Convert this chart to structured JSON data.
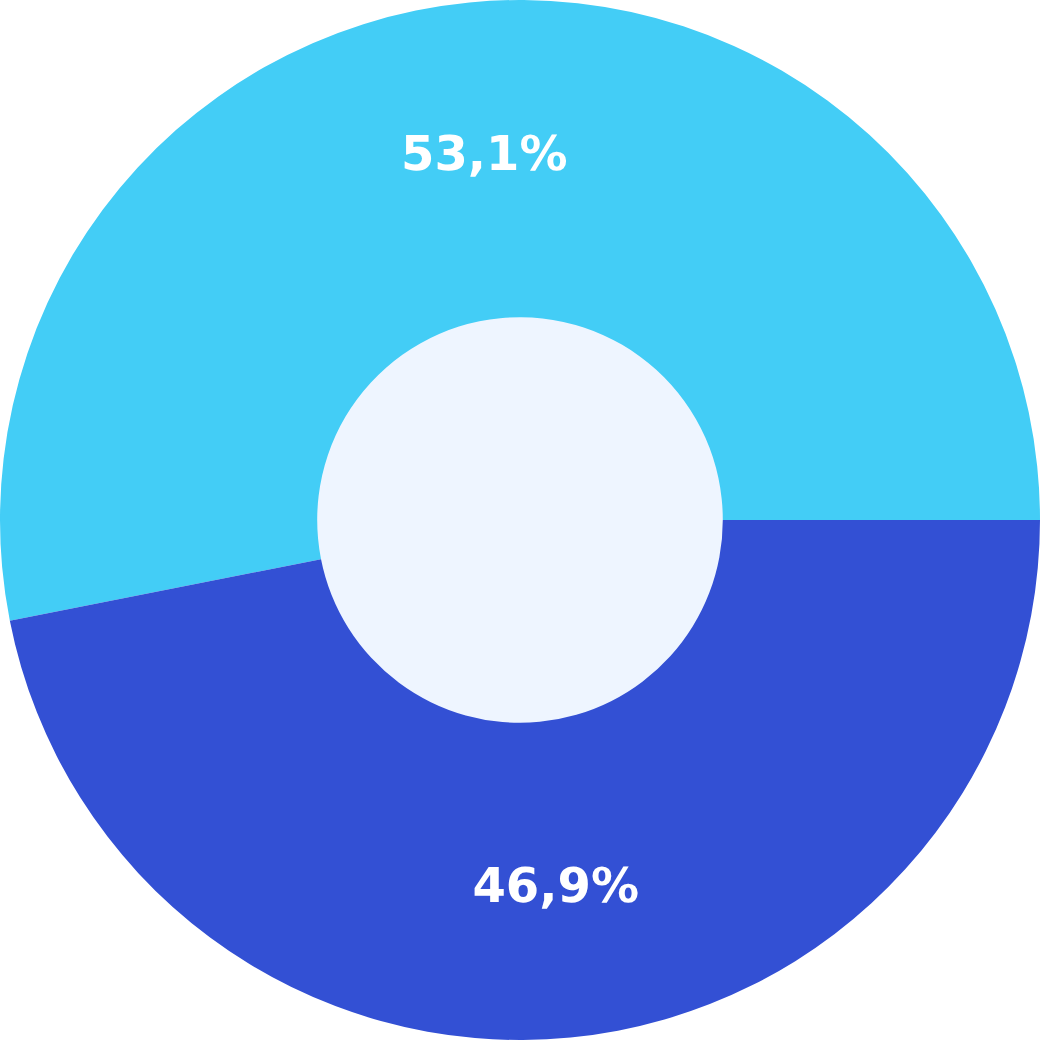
{
  "chart_data": {
    "type": "donut",
    "categories": [
      null,
      null
    ],
    "values": [
      53.1,
      46.9
    ],
    "value_labels": [
      "53,1%",
      "46,9%"
    ],
    "colors": [
      "#43cdf6",
      "#3350d4"
    ]
  }
}
